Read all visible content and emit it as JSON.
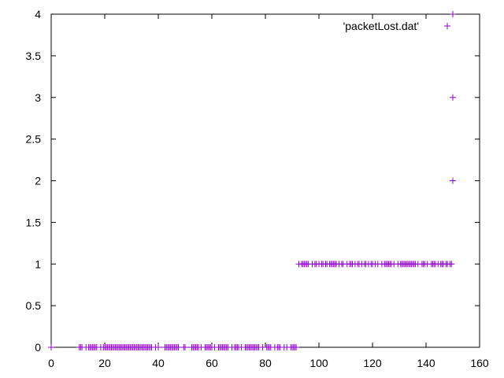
{
  "chart_data": {
    "type": "scatter",
    "title": "",
    "xlabel": "",
    "ylabel": "",
    "xlim": [
      0,
      160
    ],
    "ylim": [
      0,
      4
    ],
    "x_ticks": [
      "0",
      "20",
      "40",
      "60",
      "80",
      "100",
      "120",
      "140",
      "160"
    ],
    "y_ticks": [
      "0",
      "0.5",
      "1",
      "1.5",
      "2",
      "2.5",
      "3",
      "3.5",
      "4"
    ],
    "grid": false,
    "legend_position": "top-right",
    "marker": "+",
    "series": [
      {
        "name": "'packetLost.dat'",
        "color": "#9400d3",
        "points": [
          [
            0,
            0
          ],
          [
            10.5,
            0
          ],
          [
            11,
            0
          ],
          [
            11.5,
            0
          ],
          [
            13,
            0
          ],
          [
            14,
            0
          ],
          [
            14.5,
            0
          ],
          [
            15,
            0
          ],
          [
            15.5,
            0
          ],
          [
            16,
            0
          ],
          [
            16.5,
            0
          ],
          [
            17,
            0
          ],
          [
            18.5,
            0
          ],
          [
            19.5,
            0
          ],
          [
            20,
            0
          ],
          [
            20.5,
            0
          ],
          [
            21,
            0
          ],
          [
            21.5,
            0
          ],
          [
            22,
            0
          ],
          [
            22.5,
            0
          ],
          [
            23,
            0
          ],
          [
            23.5,
            0
          ],
          [
            24,
            0
          ],
          [
            24.5,
            0
          ],
          [
            25,
            0
          ],
          [
            25.5,
            0
          ],
          [
            26,
            0
          ],
          [
            26.5,
            0
          ],
          [
            27,
            0
          ],
          [
            27.5,
            0
          ],
          [
            28,
            0
          ],
          [
            28.5,
            0
          ],
          [
            29,
            0
          ],
          [
            29.5,
            0
          ],
          [
            30,
            0
          ],
          [
            30.5,
            0
          ],
          [
            31,
            0
          ],
          [
            31.5,
            0
          ],
          [
            32,
            0
          ],
          [
            32.5,
            0
          ],
          [
            33,
            0
          ],
          [
            33.5,
            0
          ],
          [
            34,
            0
          ],
          [
            34.5,
            0
          ],
          [
            35,
            0
          ],
          [
            35.5,
            0
          ],
          [
            36,
            0
          ],
          [
            36.5,
            0
          ],
          [
            37,
            0
          ],
          [
            37.5,
            0
          ],
          [
            39,
            0
          ],
          [
            40,
            0
          ],
          [
            42.5,
            0
          ],
          [
            43,
            0
          ],
          [
            43.5,
            0
          ],
          [
            44,
            0
          ],
          [
            44.5,
            0
          ],
          [
            45,
            0
          ],
          [
            45.5,
            0
          ],
          [
            46,
            0
          ],
          [
            46.5,
            0
          ],
          [
            47,
            0
          ],
          [
            47.5,
            0
          ],
          [
            49.5,
            0
          ],
          [
            50,
            0
          ],
          [
            52.5,
            0
          ],
          [
            53,
            0
          ],
          [
            53.5,
            0
          ],
          [
            54,
            0
          ],
          [
            54.5,
            0
          ],
          [
            55,
            0
          ],
          [
            56,
            0
          ],
          [
            57.5,
            0
          ],
          [
            58,
            0
          ],
          [
            58.5,
            0
          ],
          [
            59,
            0
          ],
          [
            59.5,
            0
          ],
          [
            60,
            0
          ],
          [
            61,
            0
          ],
          [
            62.5,
            0
          ],
          [
            63,
            0
          ],
          [
            63.5,
            0
          ],
          [
            64,
            0
          ],
          [
            64.5,
            0
          ],
          [
            65,
            0
          ],
          [
            65.5,
            0
          ],
          [
            66,
            0
          ],
          [
            67.5,
            0
          ],
          [
            68.5,
            0
          ],
          [
            69,
            0
          ],
          [
            69.5,
            0
          ],
          [
            70,
            0
          ],
          [
            71,
            0
          ],
          [
            72.5,
            0
          ],
          [
            73,
            0
          ],
          [
            73.5,
            0
          ],
          [
            74,
            0
          ],
          [
            74.5,
            0
          ],
          [
            75,
            0
          ],
          [
            75.5,
            0
          ],
          [
            76,
            0
          ],
          [
            76.5,
            0
          ],
          [
            77,
            0
          ],
          [
            77.5,
            0
          ],
          [
            79,
            0
          ],
          [
            80.5,
            0
          ],
          [
            81,
            0
          ],
          [
            81.5,
            0
          ],
          [
            82,
            0
          ],
          [
            83.5,
            0
          ],
          [
            84.5,
            0
          ],
          [
            85,
            0
          ],
          [
            85.5,
            0
          ],
          [
            87,
            0
          ],
          [
            88,
            0
          ],
          [
            89.5,
            0
          ],
          [
            90,
            0
          ],
          [
            90.5,
            0
          ],
          [
            91,
            0
          ],
          [
            91.5,
            0
          ],
          [
            92.5,
            1
          ],
          [
            93.5,
            1
          ],
          [
            94,
            1
          ],
          [
            94.5,
            1
          ],
          [
            95,
            1
          ],
          [
            95.5,
            1
          ],
          [
            96,
            1
          ],
          [
            97.5,
            1
          ],
          [
            98.5,
            1
          ],
          [
            99,
            1
          ],
          [
            100,
            1
          ],
          [
            101,
            1
          ],
          [
            101.5,
            1
          ],
          [
            102.5,
            1
          ],
          [
            103,
            1
          ],
          [
            104,
            1
          ],
          [
            104.5,
            1
          ],
          [
            105,
            1
          ],
          [
            105.5,
            1
          ],
          [
            106,
            1
          ],
          [
            106.5,
            1
          ],
          [
            107.5,
            1
          ],
          [
            108.5,
            1
          ],
          [
            109,
            1
          ],
          [
            110.5,
            1
          ],
          [
            111.5,
            1
          ],
          [
            112,
            1
          ],
          [
            112.5,
            1
          ],
          [
            113.5,
            1
          ],
          [
            114.5,
            1
          ],
          [
            115,
            1
          ],
          [
            116,
            1
          ],
          [
            117,
            1
          ],
          [
            117.5,
            1
          ],
          [
            118.5,
            1
          ],
          [
            119.5,
            1
          ],
          [
            120,
            1
          ],
          [
            121,
            1
          ],
          [
            122,
            1
          ],
          [
            123.5,
            1
          ],
          [
            124.5,
            1
          ],
          [
            125,
            1
          ],
          [
            125.5,
            1
          ],
          [
            126,
            1
          ],
          [
            126.5,
            1
          ],
          [
            127,
            1
          ],
          [
            128,
            1
          ],
          [
            129.5,
            1
          ],
          [
            130.5,
            1
          ],
          [
            131,
            1
          ],
          [
            131.5,
            1
          ],
          [
            132,
            1
          ],
          [
            132.5,
            1
          ],
          [
            133,
            1
          ],
          [
            133.5,
            1
          ],
          [
            134,
            1
          ],
          [
            134.5,
            1
          ],
          [
            135,
            1
          ],
          [
            135.5,
            1
          ],
          [
            136,
            1
          ],
          [
            137,
            1
          ],
          [
            138.5,
            1
          ],
          [
            139,
            1
          ],
          [
            139.5,
            1
          ],
          [
            140.5,
            1
          ],
          [
            142,
            1
          ],
          [
            142.5,
            1
          ],
          [
            143,
            1
          ],
          [
            143.5,
            1
          ],
          [
            144.5,
            1
          ],
          [
            145.5,
            1
          ],
          [
            146,
            1
          ],
          [
            146.5,
            1
          ],
          [
            147.5,
            1
          ],
          [
            148,
            1
          ],
          [
            149,
            1
          ],
          [
            149.5,
            1
          ],
          [
            150,
            2
          ],
          [
            150,
            3
          ],
          [
            150,
            4
          ]
        ]
      }
    ]
  }
}
